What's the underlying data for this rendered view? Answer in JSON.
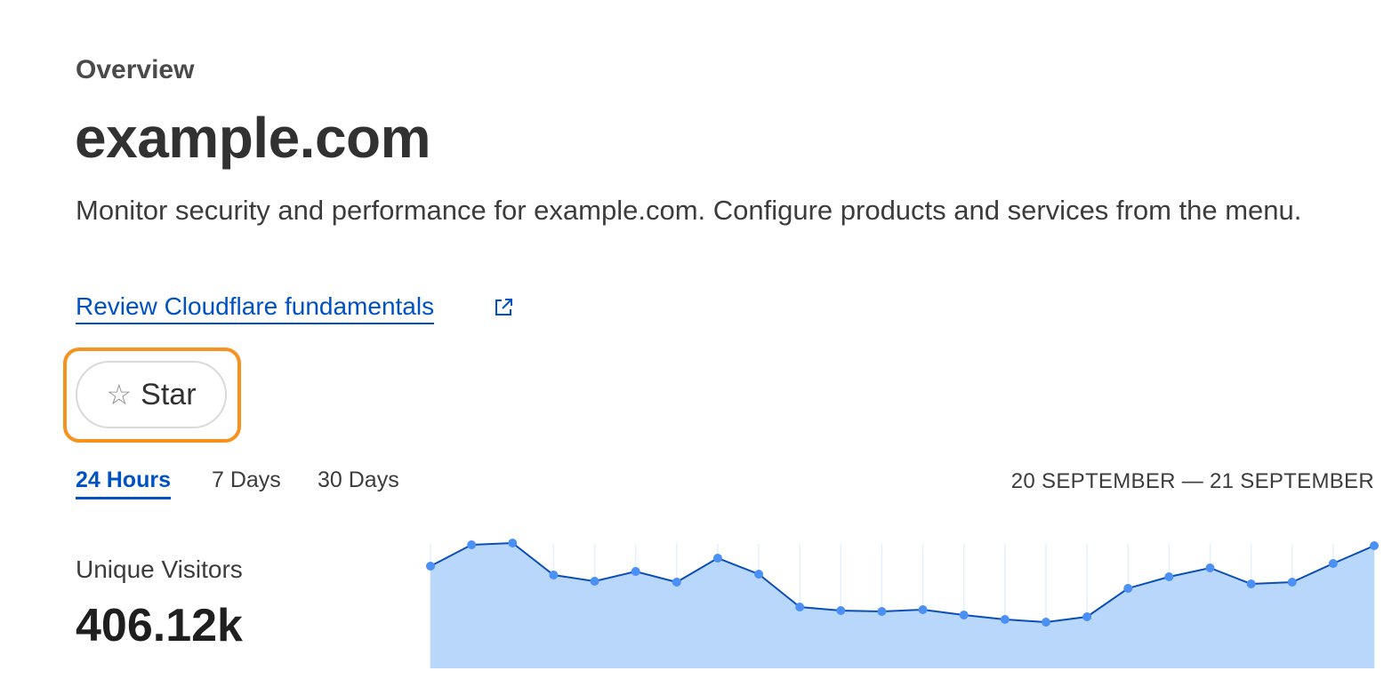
{
  "header": {
    "eyebrow": "Overview",
    "title": "example.com",
    "description": "Monitor security and performance for example.com. Configure products and services from the menu.",
    "link_label": "Review Cloudflare fundamentals",
    "link_icon": "external-link-icon",
    "star_label": "Star",
    "star_icon": "star-outline-icon"
  },
  "time_tabs": [
    {
      "label": "24 Hours",
      "active": true
    },
    {
      "label": "7 Days",
      "active": false
    },
    {
      "label": "30 Days",
      "active": false
    }
  ],
  "date_range": "20 SEPTEMBER — 21 SEPTEMBER",
  "metric": {
    "label": "Unique Visitors",
    "value": "406.12k"
  },
  "colors": {
    "accent": "#0051c3",
    "focus": "#f6921e",
    "area_fill": "#b9d6fb",
    "line": "#0a4fb8",
    "point": "#4a90f5"
  },
  "chart_data": {
    "type": "area",
    "note_units": "relative (no axis printed)",
    "values": [
      115,
      139,
      141,
      105,
      98,
      109,
      97,
      124,
      106,
      69,
      65,
      64,
      66,
      60,
      55,
      52,
      58,
      90,
      103,
      113,
      95,
      97,
      118,
      138
    ],
    "ylim": [
      0,
      160
    ],
    "grid": "vertical",
    "legend": "none"
  }
}
